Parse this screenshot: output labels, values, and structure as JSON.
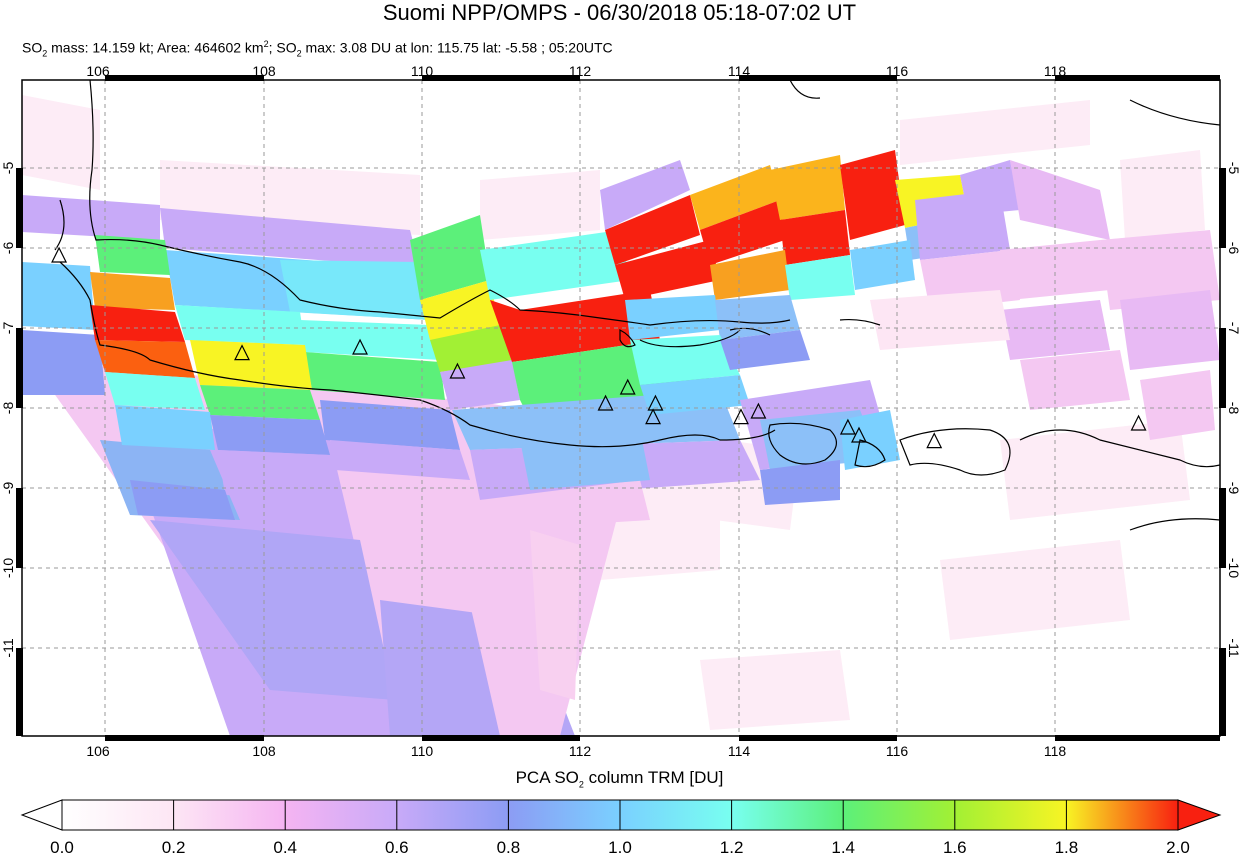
{
  "header": {
    "title": "Suomi NPP/OMPS - 06/30/2018 05:18-07:02 UT",
    "so2_mass_prefix": "SO",
    "so2_mass_text": " mass: 14.159 kt; Area: 464602 km",
    "area_unit_sup": "2",
    "so2_max_prefix": "; SO",
    "so2_max_text": " max: 3.08 DU at lon: 115.75 lat: -5.58 ; 05:20UTC",
    "sub2": "2"
  },
  "map": {
    "lon_ticks": [
      "106",
      "108",
      "110",
      "112",
      "114",
      "116",
      "118"
    ],
    "lat_ticks": [
      "-5",
      "-6",
      "-7",
      "-8",
      "-9",
      "-10",
      "-11"
    ],
    "lon_range": [
      105,
      120.2
    ],
    "lat_range": [
      -12.1,
      -3.9
    ],
    "volcano_icon": "triangle-icon",
    "volcanoes": [
      {
        "lon": 105.42,
        "lat": -6.1
      },
      {
        "lon": 107.73,
        "lat": -7.32
      },
      {
        "lon": 109.22,
        "lat": -7.25
      },
      {
        "lon": 110.45,
        "lat": -7.55
      },
      {
        "lon": 112.32,
        "lat": -7.95
      },
      {
        "lon": 112.6,
        "lat": -7.75
      },
      {
        "lon": 112.95,
        "lat": -7.95
      },
      {
        "lon": 112.92,
        "lat": -8.12
      },
      {
        "lon": 114.03,
        "lat": -8.12
      },
      {
        "lon": 114.25,
        "lat": -8.05
      },
      {
        "lon": 115.38,
        "lat": -8.25
      },
      {
        "lon": 115.52,
        "lat": -8.35
      },
      {
        "lon": 116.47,
        "lat": -8.42
      },
      {
        "lon": 119.05,
        "lat": -8.2
      }
    ]
  },
  "colorbar": {
    "title_prefix": "PCA SO",
    "title_sub": "2",
    "title_suffix": " column TRM [DU]",
    "min": 0.0,
    "max": 2.0,
    "tick_labels": [
      "0.0",
      "0.2",
      "0.4",
      "0.6",
      "0.8",
      "1.0",
      "1.2",
      "1.4",
      "1.6",
      "1.8",
      "2.0"
    ],
    "colors": [
      "#ffffff",
      "#fde6f4",
      "#f5b4f2",
      "#c8aaf8",
      "#8c9cf4",
      "#7ad0ff",
      "#78fff0",
      "#5cf07a",
      "#a2f034",
      "#f8f424",
      "#f8a020",
      "#f82010"
    ]
  }
}
